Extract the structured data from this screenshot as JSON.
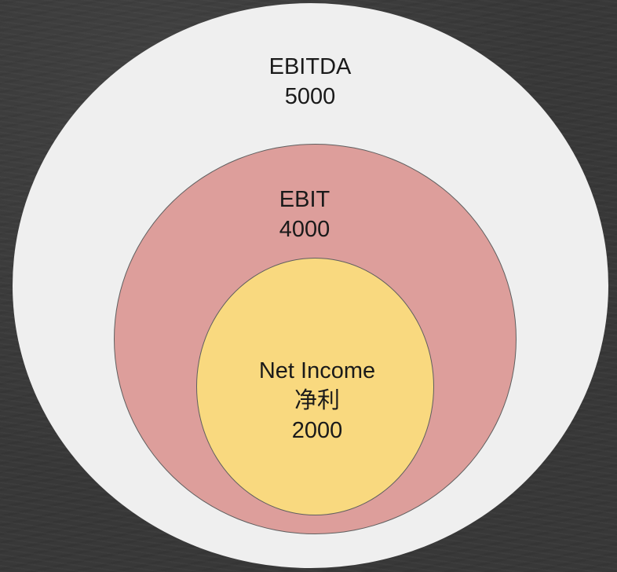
{
  "diagram": {
    "outer": {
      "title": "EBITDA",
      "value": "5000",
      "color": "#efefef"
    },
    "middle": {
      "title": "EBIT",
      "value": "4000",
      "color": "#dd9e9b"
    },
    "inner": {
      "title": "Net Income",
      "subtitle": "净利",
      "value": "2000",
      "color": "#f9d97f"
    }
  }
}
